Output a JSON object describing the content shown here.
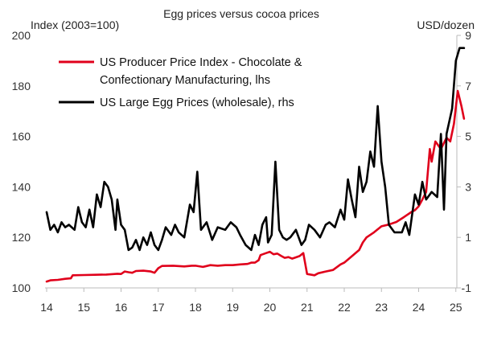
{
  "chart_data": {
    "type": "line",
    "title": "Egg prices versus cocoa prices",
    "y_left_label": "Index (2003=100)",
    "y_right_label": "USD/dozen",
    "x_ticks": [
      "14",
      "15",
      "16",
      "17",
      "18",
      "19",
      "20",
      "21",
      "22",
      "23",
      "24",
      "25"
    ],
    "y_left_ticks": [
      "100",
      "120",
      "140",
      "160",
      "180",
      "200"
    ],
    "y_right_ticks": [
      "-1",
      "1",
      "3",
      "5",
      "7",
      "9"
    ],
    "xlim": [
      2014,
      2025.25
    ],
    "ylim_left": [
      100,
      200
    ],
    "ylim_right": [
      -1,
      9
    ],
    "grid": false,
    "legend_position": "top-left",
    "colors": {
      "chocolate": "#e0001b",
      "eggs": "#000000",
      "axis": "#bbbbbb"
    },
    "series": [
      {
        "name": "US Producer Price Index - Chocolate & Confectionary Manufacturing, lhs",
        "legend_lines": [
          "US Producer Price Index - Chocolate &",
          "Confectionary Manufacturing, lhs"
        ],
        "axis": "left",
        "color": "#e0001b",
        "points": [
          [
            2014.0,
            102.5
          ],
          [
            2014.1,
            103.0
          ],
          [
            2014.3,
            103.2
          ],
          [
            2014.5,
            103.6
          ],
          [
            2014.65,
            103.8
          ],
          [
            2014.7,
            105.0
          ],
          [
            2015.0,
            105.1
          ],
          [
            2015.3,
            105.2
          ],
          [
            2015.6,
            105.3
          ],
          [
            2015.9,
            105.6
          ],
          [
            2016.0,
            105.5
          ],
          [
            2016.1,
            106.5
          ],
          [
            2016.2,
            106.2
          ],
          [
            2016.3,
            106.0
          ],
          [
            2016.4,
            106.7
          ],
          [
            2016.6,
            106.8
          ],
          [
            2016.8,
            106.5
          ],
          [
            2016.9,
            106.0
          ],
          [
            2017.0,
            107.8
          ],
          [
            2017.1,
            108.7
          ],
          [
            2017.4,
            108.8
          ],
          [
            2017.7,
            108.5
          ],
          [
            2017.9,
            108.8
          ],
          [
            2018.0,
            108.8
          ],
          [
            2018.2,
            108.3
          ],
          [
            2018.4,
            109.0
          ],
          [
            2018.6,
            108.8
          ],
          [
            2018.8,
            109.0
          ],
          [
            2019.0,
            109.0
          ],
          [
            2019.2,
            109.3
          ],
          [
            2019.4,
            109.5
          ],
          [
            2019.5,
            110.0
          ],
          [
            2019.6,
            110.0
          ],
          [
            2019.7,
            111.0
          ],
          [
            2019.75,
            113.0
          ],
          [
            2019.9,
            113.8
          ],
          [
            2020.0,
            114.3
          ],
          [
            2020.1,
            113.3
          ],
          [
            2020.2,
            113.6
          ],
          [
            2020.3,
            112.7
          ],
          [
            2020.4,
            111.9
          ],
          [
            2020.5,
            112.2
          ],
          [
            2020.6,
            111.6
          ],
          [
            2020.7,
            112.1
          ],
          [
            2020.8,
            112.6
          ],
          [
            2020.9,
            113.8
          ],
          [
            2021.0,
            105.5
          ],
          [
            2021.2,
            105.0
          ],
          [
            2021.3,
            105.8
          ],
          [
            2021.5,
            106.5
          ],
          [
            2021.7,
            107.1
          ],
          [
            2021.9,
            109.3
          ],
          [
            2022.0,
            110.0
          ],
          [
            2022.2,
            112.5
          ],
          [
            2022.4,
            115.0
          ],
          [
            2022.5,
            118.0
          ],
          [
            2022.6,
            120.0
          ],
          [
            2022.8,
            122.0
          ],
          [
            2023.0,
            124.4
          ],
          [
            2023.2,
            125.1
          ],
          [
            2023.4,
            126.1
          ],
          [
            2023.6,
            128.0
          ],
          [
            2023.8,
            130.0
          ],
          [
            2023.9,
            130.8
          ],
          [
            2024.0,
            132.3
          ],
          [
            2024.1,
            135.0
          ],
          [
            2024.2,
            138.0
          ],
          [
            2024.3,
            155.0
          ],
          [
            2024.35,
            150.0
          ],
          [
            2024.45,
            158.0
          ],
          [
            2024.6,
            155.0
          ],
          [
            2024.75,
            159.5
          ],
          [
            2024.85,
            158.0
          ],
          [
            2024.95,
            165.0
          ],
          [
            2025.05,
            178.0
          ],
          [
            2025.15,
            172.0
          ],
          [
            2025.22,
            167.0
          ]
        ]
      },
      {
        "name": "US Large Egg Prices (wholesale), rhs",
        "legend_lines": [
          "US Large Egg Prices (wholesale), rhs"
        ],
        "axis": "right",
        "color": "#000000",
        "points": [
          [
            2014.0,
            2.0
          ],
          [
            2014.1,
            1.3
          ],
          [
            2014.2,
            1.5
          ],
          [
            2014.3,
            1.2
          ],
          [
            2014.4,
            1.6
          ],
          [
            2014.5,
            1.4
          ],
          [
            2014.6,
            1.5
          ],
          [
            2014.75,
            1.3
          ],
          [
            2014.85,
            2.2
          ],
          [
            2014.95,
            1.6
          ],
          [
            2015.05,
            1.4
          ],
          [
            2015.15,
            2.1
          ],
          [
            2015.25,
            1.4
          ],
          [
            2015.35,
            2.7
          ],
          [
            2015.45,
            2.2
          ],
          [
            2015.55,
            3.2
          ],
          [
            2015.65,
            3.0
          ],
          [
            2015.75,
            2.5
          ],
          [
            2015.85,
            1.3
          ],
          [
            2015.9,
            2.5
          ],
          [
            2016.0,
            1.5
          ],
          [
            2016.1,
            1.3
          ],
          [
            2016.2,
            0.5
          ],
          [
            2016.3,
            0.6
          ],
          [
            2016.4,
            0.9
          ],
          [
            2016.5,
            0.5
          ],
          [
            2016.6,
            1.0
          ],
          [
            2016.7,
            0.7
          ],
          [
            2016.8,
            1.2
          ],
          [
            2016.9,
            0.7
          ],
          [
            2017.0,
            0.5
          ],
          [
            2017.1,
            0.9
          ],
          [
            2017.2,
            1.4
          ],
          [
            2017.35,
            1.1
          ],
          [
            2017.45,
            1.5
          ],
          [
            2017.55,
            1.2
          ],
          [
            2017.7,
            1.0
          ],
          [
            2017.85,
            2.3
          ],
          [
            2017.95,
            2.0
          ],
          [
            2018.05,
            3.6
          ],
          [
            2018.15,
            1.3
          ],
          [
            2018.3,
            1.6
          ],
          [
            2018.45,
            0.9
          ],
          [
            2018.6,
            1.4
          ],
          [
            2018.8,
            1.3
          ],
          [
            2018.95,
            1.6
          ],
          [
            2019.1,
            1.4
          ],
          [
            2019.2,
            1.1
          ],
          [
            2019.35,
            0.7
          ],
          [
            2019.5,
            0.5
          ],
          [
            2019.6,
            1.1
          ],
          [
            2019.7,
            0.7
          ],
          [
            2019.8,
            1.5
          ],
          [
            2019.9,
            1.8
          ],
          [
            2019.95,
            0.8
          ],
          [
            2020.05,
            1.1
          ],
          [
            2020.15,
            4.0
          ],
          [
            2020.25,
            1.3
          ],
          [
            2020.35,
            1.0
          ],
          [
            2020.45,
            0.9
          ],
          [
            2020.55,
            1.0
          ],
          [
            2020.7,
            1.3
          ],
          [
            2020.85,
            0.7
          ],
          [
            2020.95,
            0.9
          ],
          [
            2021.05,
            1.5
          ],
          [
            2021.2,
            1.3
          ],
          [
            2021.35,
            1.0
          ],
          [
            2021.5,
            1.5
          ],
          [
            2021.6,
            1.6
          ],
          [
            2021.75,
            1.4
          ],
          [
            2021.9,
            2.1
          ],
          [
            2022.0,
            1.7
          ],
          [
            2022.1,
            3.3
          ],
          [
            2022.2,
            2.5
          ],
          [
            2022.3,
            1.8
          ],
          [
            2022.4,
            3.8
          ],
          [
            2022.5,
            2.8
          ],
          [
            2022.6,
            3.2
          ],
          [
            2022.7,
            4.4
          ],
          [
            2022.8,
            3.8
          ],
          [
            2022.9,
            6.2
          ],
          [
            2023.0,
            4.0
          ],
          [
            2023.1,
            3.0
          ],
          [
            2023.2,
            1.5
          ],
          [
            2023.35,
            1.2
          ],
          [
            2023.55,
            1.2
          ],
          [
            2023.65,
            1.6
          ],
          [
            2023.75,
            1.1
          ],
          [
            2023.9,
            2.7
          ],
          [
            2024.0,
            2.3
          ],
          [
            2024.1,
            3.2
          ],
          [
            2024.2,
            2.5
          ],
          [
            2024.35,
            2.8
          ],
          [
            2024.5,
            2.6
          ],
          [
            2024.6,
            5.1
          ],
          [
            2024.68,
            2.1
          ],
          [
            2024.75,
            5.1
          ],
          [
            2024.9,
            6.1
          ],
          [
            2025.0,
            8.0
          ],
          [
            2025.1,
            8.5
          ],
          [
            2025.22,
            8.5
          ]
        ]
      }
    ]
  }
}
